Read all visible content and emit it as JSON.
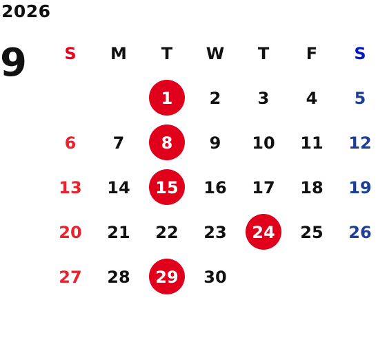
{
  "year": "2026",
  "month": "9",
  "weekdays": [
    "S",
    "M",
    "T",
    "W",
    "T",
    "F",
    "S"
  ],
  "colors": {
    "sunday_header": "#e8001c",
    "saturday_header": "#0018c8",
    "sunday_day": "#e8232d",
    "saturday_day": "#1e3f97",
    "weekday": "#111111",
    "highlight_bg": "#e0001b",
    "highlight_text": "#ffffff"
  },
  "first_weekday_index": 2,
  "days": [
    {
      "d": "1",
      "hl": true
    },
    {
      "d": "2"
    },
    {
      "d": "3"
    },
    {
      "d": "4"
    },
    {
      "d": "5"
    },
    {
      "d": "6"
    },
    {
      "d": "7"
    },
    {
      "d": "8",
      "hl": true
    },
    {
      "d": "9"
    },
    {
      "d": "10"
    },
    {
      "d": "11"
    },
    {
      "d": "12"
    },
    {
      "d": "13"
    },
    {
      "d": "14"
    },
    {
      "d": "15",
      "hl": true
    },
    {
      "d": "16"
    },
    {
      "d": "17"
    },
    {
      "d": "18"
    },
    {
      "d": "19"
    },
    {
      "d": "20"
    },
    {
      "d": "21"
    },
    {
      "d": "22"
    },
    {
      "d": "23"
    },
    {
      "d": "24",
      "hl": true
    },
    {
      "d": "25"
    },
    {
      "d": "26"
    },
    {
      "d": "27"
    },
    {
      "d": "28"
    },
    {
      "d": "29",
      "hl": true
    },
    {
      "d": "30"
    }
  ]
}
